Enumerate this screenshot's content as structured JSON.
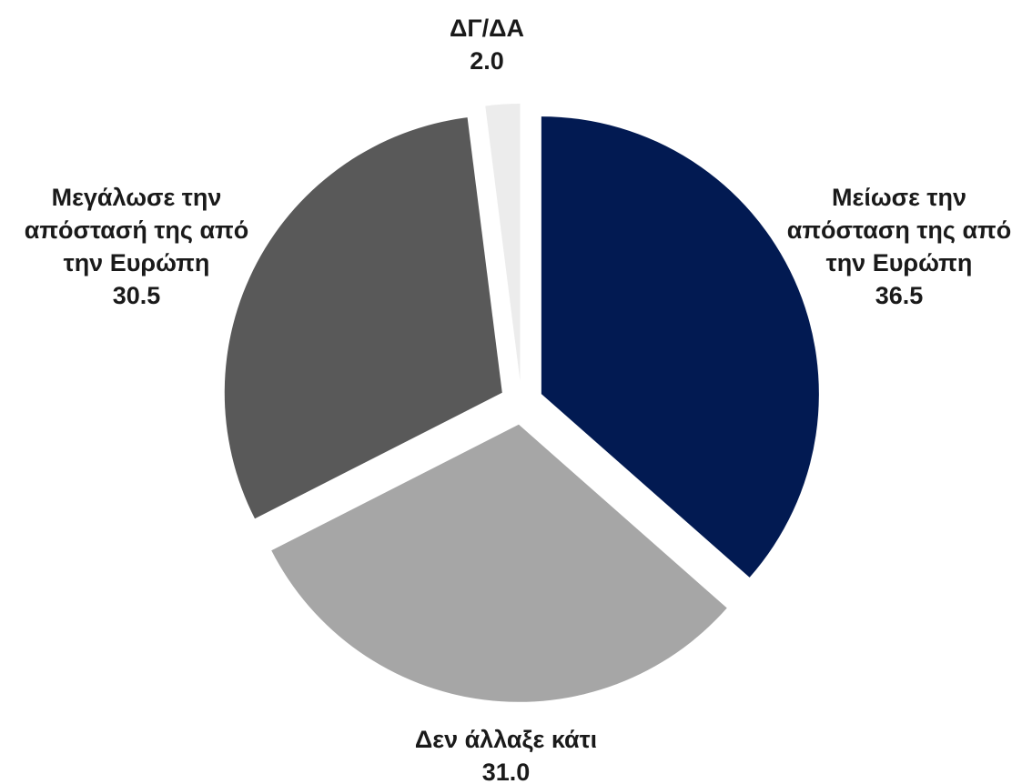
{
  "chart_data": {
    "type": "pie",
    "slices": [
      {
        "label_lines": [
          "Μείωσε την",
          "απόσταση της από",
          "την Ευρώπη"
        ],
        "value": 36.5,
        "value_text": "36.5",
        "color": "#021a52"
      },
      {
        "label_lines": [
          "Δεν άλλαξε κάτι"
        ],
        "value": 31.0,
        "value_text": "31.0",
        "color": "#a6a6a6"
      },
      {
        "label_lines": [
          "Μεγάλωσε την",
          "απόστασή της από",
          "την Ευρώπη"
        ],
        "value": 30.5,
        "value_text": "30.5",
        "color": "#595959"
      },
      {
        "label_lines": [
          "ΔΓ/ΔΑ"
        ],
        "value": 2.0,
        "value_text": "2.0",
        "color": "#ececec"
      }
    ]
  }
}
